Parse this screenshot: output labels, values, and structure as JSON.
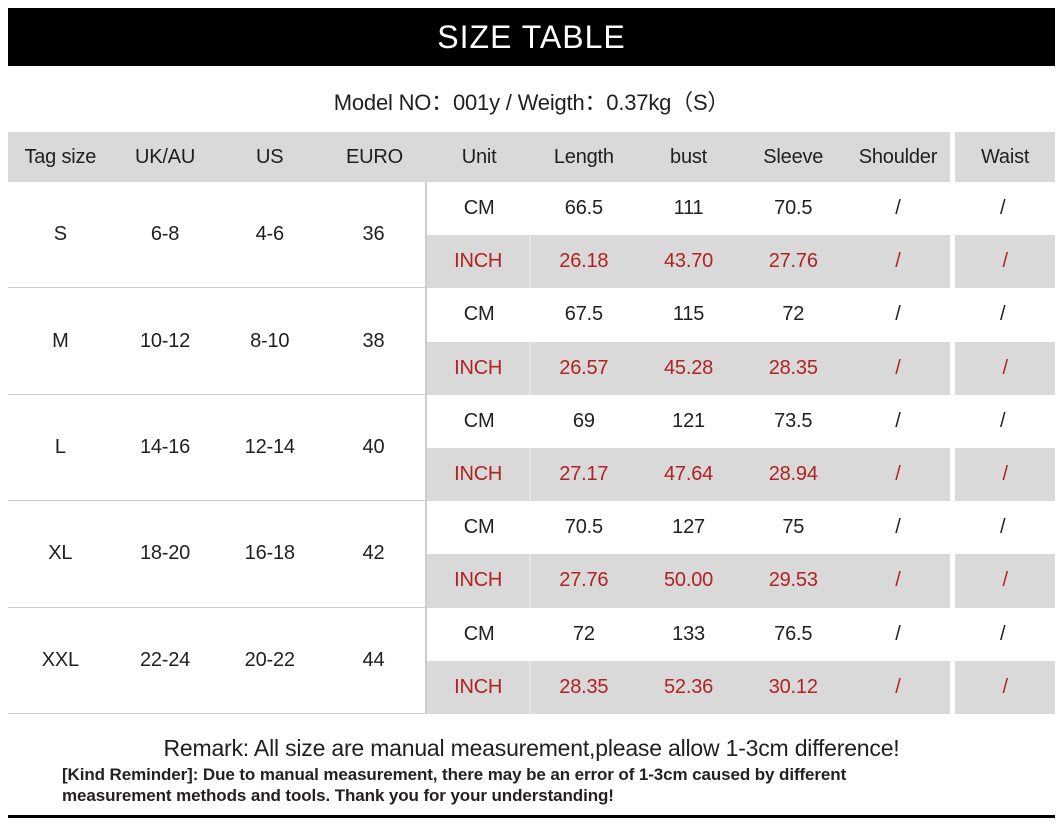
{
  "title": "SIZE TABLE",
  "model_line": "Model NO：001y / Weigth：0.37kg（S）",
  "table": {
    "headers": [
      "Tag size",
      "UK/AU",
      "US",
      "EURO",
      "Unit",
      "Length",
      "bust",
      "Sleeve",
      "Shoulder",
      "Waist"
    ],
    "unit_cm": "CM",
    "unit_inch": "INCH",
    "rows": [
      {
        "tag": "S",
        "uk_au": "6-8",
        "us": "4-6",
        "euro": "36",
        "cm": [
          "66.5",
          "111",
          "70.5",
          "/",
          "/"
        ],
        "inch": [
          "26.18",
          "43.70",
          "27.76",
          "/",
          "/"
        ]
      },
      {
        "tag": "M",
        "uk_au": "10-12",
        "us": "8-10",
        "euro": "38",
        "cm": [
          "67.5",
          "115",
          "72",
          "/",
          "/"
        ],
        "inch": [
          "26.57",
          "45.28",
          "28.35",
          "/",
          "/"
        ]
      },
      {
        "tag": "L",
        "uk_au": "14-16",
        "us": "12-14",
        "euro": "40",
        "cm": [
          "69",
          "121",
          "73.5",
          "/",
          "/"
        ],
        "inch": [
          "27.17",
          "47.64",
          "28.94",
          "/",
          "/"
        ]
      },
      {
        "tag": "XL",
        "uk_au": "18-20",
        "us": "16-18",
        "euro": "42",
        "cm": [
          "70.5",
          "127",
          "75",
          "/",
          "/"
        ],
        "inch": [
          "27.76",
          "50.00",
          "29.53",
          "/",
          "/"
        ]
      },
      {
        "tag": "XXL",
        "uk_au": "22-24",
        "us": "20-22",
        "euro": "44",
        "cm": [
          "72",
          "133",
          "76.5",
          "/",
          "/"
        ],
        "inch": [
          "28.35",
          "52.36",
          "30.12",
          "/",
          "/"
        ]
      }
    ]
  },
  "footer": {
    "remark": "Remark: All size are manual measurement,please allow 1-3cm difference!",
    "reminder": "[Kind Reminder]: Due to manual measurement, there may be an error of 1-3cm caused by different measurement methods and tools. Thank you for your understanding!"
  },
  "colors": {
    "banner_bg": "#000000",
    "banner_text": "#ffffff",
    "cell_bg": "#d9d9d9",
    "inch_text": "#b22222",
    "text": "#1f1f1f",
    "divider": "#cccccc"
  }
}
